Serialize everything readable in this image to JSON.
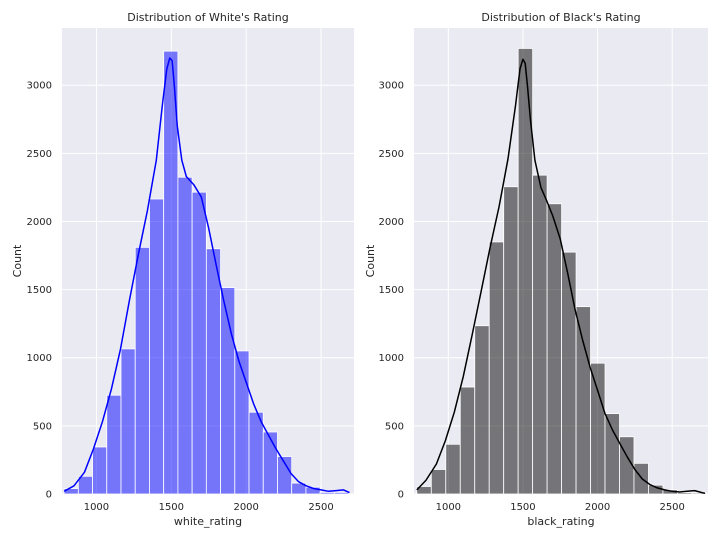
{
  "chart_data": [
    {
      "type": "bar",
      "title": "Distribution of White's Rating",
      "xlabel": "white_rating",
      "ylabel": "Count",
      "xlim": [
        770,
        2720
      ],
      "ylim": [
        0,
        3420
      ],
      "xticks": [
        1000,
        1500,
        2000,
        2500
      ],
      "yticks": [
        0,
        500,
        1000,
        1500,
        2000,
        2500,
        3000
      ],
      "grid": true,
      "bar_color": "#0000ff",
      "bar_opacity": 0.5,
      "kde_color": "#0000ff",
      "bins": [
        {
          "x0": 784,
          "x1": 879,
          "count": 40
        },
        {
          "x0": 879,
          "x1": 974,
          "count": 130
        },
        {
          "x0": 974,
          "x1": 1069,
          "count": 345
        },
        {
          "x0": 1069,
          "x1": 1164,
          "count": 725
        },
        {
          "x0": 1164,
          "x1": 1259,
          "count": 1065
        },
        {
          "x0": 1259,
          "x1": 1354,
          "count": 1810
        },
        {
          "x0": 1354,
          "x1": 1449,
          "count": 2165
        },
        {
          "x0": 1449,
          "x1": 1544,
          "count": 3250
        },
        {
          "x0": 1544,
          "x1": 1639,
          "count": 2325
        },
        {
          "x0": 1639,
          "x1": 1734,
          "count": 2215
        },
        {
          "x0": 1734,
          "x1": 1829,
          "count": 1800
        },
        {
          "x0": 1829,
          "x1": 1924,
          "count": 1515
        },
        {
          "x0": 1924,
          "x1": 2019,
          "count": 1050
        },
        {
          "x0": 2019,
          "x1": 2114,
          "count": 600
        },
        {
          "x0": 2114,
          "x1": 2209,
          "count": 455
        },
        {
          "x0": 2209,
          "x1": 2304,
          "count": 275
        },
        {
          "x0": 2304,
          "x1": 2399,
          "count": 80
        },
        {
          "x0": 2399,
          "x1": 2494,
          "count": 50
        },
        {
          "x0": 2494,
          "x1": 2589,
          "count": 12
        },
        {
          "x0": 2589,
          "x1": 2684,
          "count": 12
        }
      ],
      "kde": {
        "x": [
          784,
          850,
          920,
          980,
          1040,
          1100,
          1160,
          1220,
          1280,
          1340,
          1400,
          1440,
          1470,
          1490,
          1505,
          1520,
          1540,
          1570,
          1600,
          1650,
          1700,
          1750,
          1800,
          1850,
          1900,
          1950,
          2000,
          2050,
          2100,
          2150,
          2200,
          2250,
          2300,
          2350,
          2400,
          2450,
          2500,
          2550,
          2600,
          2650,
          2690
        ],
        "y": [
          20,
          60,
          160,
          330,
          530,
          770,
          1060,
          1420,
          1760,
          2080,
          2450,
          2850,
          3120,
          3200,
          3180,
          3000,
          2700,
          2450,
          2330,
          2270,
          2180,
          1950,
          1680,
          1420,
          1180,
          980,
          820,
          660,
          530,
          430,
          330,
          240,
          150,
          90,
          60,
          40,
          30,
          20,
          25,
          30,
          10
        ]
      }
    },
    {
      "type": "bar",
      "title": "Distribution of Black's Rating",
      "xlabel": "black_rating",
      "ylabel": "Count",
      "xlim": [
        770,
        2740
      ],
      "ylim": [
        0,
        3420
      ],
      "xticks": [
        1000,
        1500,
        2000,
        2500
      ],
      "yticks": [
        0,
        500,
        1000,
        1500,
        2000,
        2500,
        3000
      ],
      "grid": true,
      "bar_color": "#000000",
      "bar_opacity": 0.5,
      "kde_color": "#000000",
      "bins": [
        {
          "x0": 789,
          "x1": 886,
          "count": 55
        },
        {
          "x0": 886,
          "x1": 983,
          "count": 180
        },
        {
          "x0": 983,
          "x1": 1080,
          "count": 365
        },
        {
          "x0": 1080,
          "x1": 1177,
          "count": 785
        },
        {
          "x0": 1177,
          "x1": 1274,
          "count": 1235
        },
        {
          "x0": 1274,
          "x1": 1371,
          "count": 1850
        },
        {
          "x0": 1371,
          "x1": 1468,
          "count": 2255
        },
        {
          "x0": 1468,
          "x1": 1565,
          "count": 3270
        },
        {
          "x0": 1565,
          "x1": 1662,
          "count": 2340
        },
        {
          "x0": 1662,
          "x1": 1759,
          "count": 2130
        },
        {
          "x0": 1759,
          "x1": 1856,
          "count": 1775
        },
        {
          "x0": 1856,
          "x1": 1953,
          "count": 1375
        },
        {
          "x0": 1953,
          "x1": 2050,
          "count": 960
        },
        {
          "x0": 2050,
          "x1": 2147,
          "count": 590
        },
        {
          "x0": 2147,
          "x1": 2244,
          "count": 420
        },
        {
          "x0": 2244,
          "x1": 2341,
          "count": 225
        },
        {
          "x0": 2341,
          "x1": 2438,
          "count": 65
        },
        {
          "x0": 2438,
          "x1": 2535,
          "count": 30
        },
        {
          "x0": 2535,
          "x1": 2632,
          "count": 10
        },
        {
          "x0": 2632,
          "x1": 2729,
          "count": 8
        }
      ],
      "kde": {
        "x": [
          789,
          850,
          920,
          980,
          1040,
          1100,
          1160,
          1220,
          1280,
          1340,
          1400,
          1450,
          1480,
          1500,
          1515,
          1530,
          1550,
          1580,
          1620,
          1660,
          1700,
          1750,
          1800,
          1850,
          1900,
          1950,
          2000,
          2050,
          2100,
          2150,
          2200,
          2250,
          2300,
          2350,
          2400,
          2450,
          2500,
          2550,
          2600,
          2650,
          2700,
          2720
        ],
        "y": [
          30,
          100,
          220,
          390,
          600,
          860,
          1170,
          1490,
          1810,
          2110,
          2460,
          2850,
          3120,
          3190,
          3160,
          3000,
          2750,
          2450,
          2250,
          2150,
          2040,
          1870,
          1620,
          1350,
          1130,
          930,
          760,
          590,
          470,
          370,
          270,
          180,
          110,
          70,
          45,
          30,
          20,
          15,
          20,
          25,
          10,
          5
        ]
      }
    }
  ]
}
